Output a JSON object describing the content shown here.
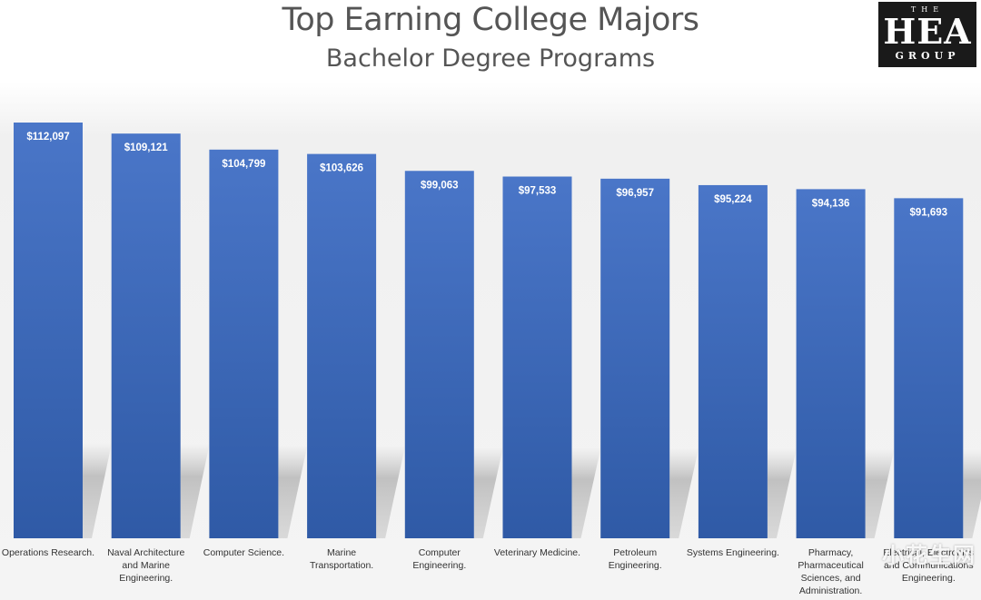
{
  "header": {
    "title": "Top Earning College Majors",
    "subtitle": "Bachelor Degree Programs"
  },
  "logo": {
    "line1": "THE",
    "line2": "HEA",
    "line3": "GROUP"
  },
  "watermark": "小花生网",
  "colors": {
    "bar_top": "#4a76c8",
    "bar_bottom": "#2f5aa6",
    "title_text": "#555555"
  },
  "chart_data": {
    "type": "bar",
    "title": "Top Earning College Majors",
    "subtitle": "Bachelor Degree Programs",
    "categories": [
      "Operations Research.",
      "Naval Architecture and Marine Engineering.",
      "Computer Science.",
      "Marine Transportation.",
      "Computer Engineering.",
      "Veterinary Medicine.",
      "Petroleum Engineering.",
      "Systems Engineering.",
      "Pharmacy, Pharmaceutical Sciences, and Administration.",
      "Electrical, Electronics and Communications Engineering."
    ],
    "category_lines": [
      [
        "Operations Research."
      ],
      [
        "Naval Architecture",
        "and Marine",
        "Engineering."
      ],
      [
        "Computer Science."
      ],
      [
        "Marine",
        "Transportation."
      ],
      [
        "Computer",
        "Engineering."
      ],
      [
        "Veterinary Medicine."
      ],
      [
        "Petroleum",
        "Engineering."
      ],
      [
        "Systems Engineering."
      ],
      [
        "Pharmacy,",
        "Pharmaceutical",
        "Sciences, and",
        "Administration."
      ],
      [
        "Electrical, Electronics",
        "and Communications",
        "Engineering."
      ]
    ],
    "values": [
      112097,
      109121,
      104799,
      103626,
      99063,
      97533,
      96957,
      95224,
      94136,
      91693
    ],
    "value_labels": [
      "$112,097",
      "$109,121",
      "$104,799",
      "$103,626",
      "$99,063",
      "$97,533",
      "$96,957",
      "$95,224",
      "$94,136",
      "$91,693"
    ],
    "ylim": [
      0,
      112097
    ],
    "grid": false,
    "legend": "none"
  }
}
